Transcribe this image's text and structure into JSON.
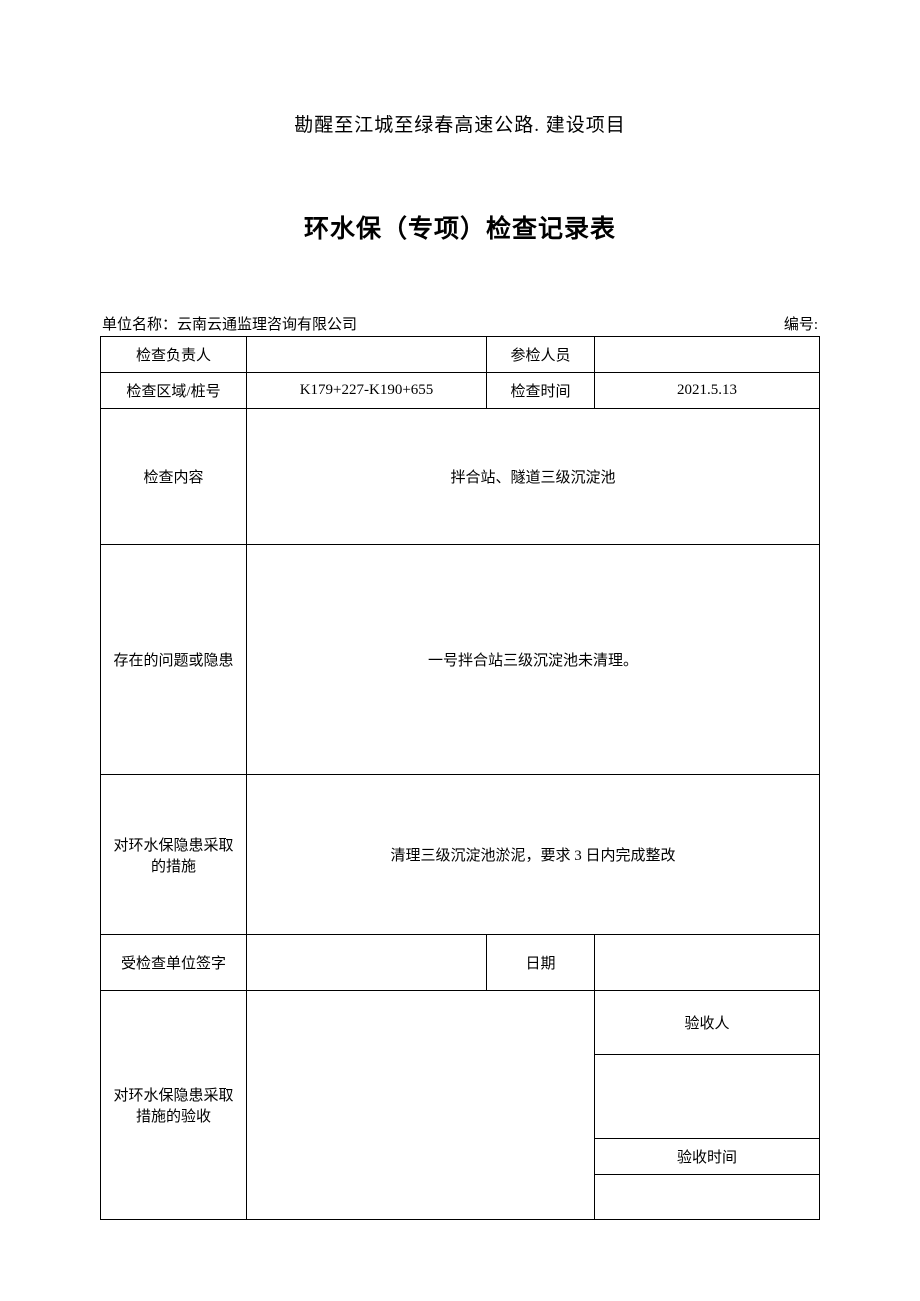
{
  "project_title": "勘醒至江城至绿春高速公路. 建设项目",
  "form_title": "环水保（专项）检查记录表",
  "meta": {
    "unit_label": "单位名称：",
    "unit_name": "云南云通监理咨询有限公司",
    "number_label": "编号:",
    "number_value": ""
  },
  "labels": {
    "inspector_leader": "检查负责人",
    "participants": "参检人员",
    "area_pile": "检查区域/桩号",
    "inspect_time": "检查时间",
    "inspect_content": "检查内容",
    "issues": "存在的问题或隐患",
    "measures": "对环水保隐患采取的措施",
    "checked_unit_sign": "受检查单位签字",
    "date": "日期",
    "acceptance": "对环水保隐患采取措施的验收",
    "acceptor": "验收人",
    "acceptance_time": "验收时间"
  },
  "values": {
    "inspector_leader": "",
    "participants": "",
    "area_pile": "K179+227-K190+655",
    "inspect_time": "2021.5.13",
    "inspect_content": "拌合站、隧道三级沉淀池",
    "issues": "一号拌合站三级沉淀池未清理。",
    "measures": "清理三级沉淀池淤泥，要求 3 日内完成整改",
    "checked_unit_sign": "",
    "date": "",
    "acceptance_body": "",
    "acceptor": "",
    "acceptance_time": ""
  },
  "style": {
    "page_bg": "#ffffff",
    "text_color": "#000000",
    "border_color": "#000000",
    "project_title_fontsize": 19,
    "form_title_fontsize": 25,
    "body_fontsize": 15
  }
}
